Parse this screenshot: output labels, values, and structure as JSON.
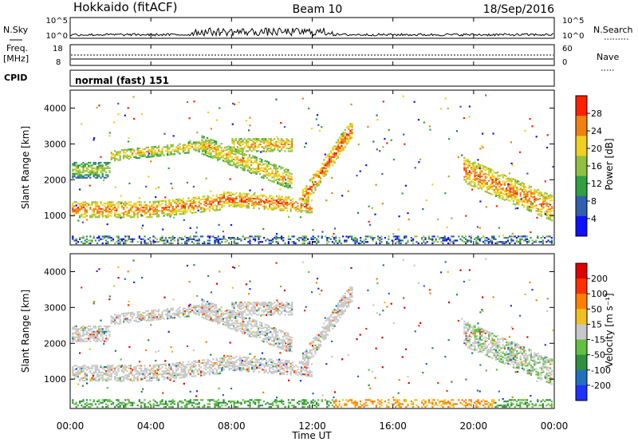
{
  "header": {
    "station": "Hokkaido (fitACF)",
    "beam": "Beam 10",
    "date": "18/Sep/2016"
  },
  "nsky_panel": {
    "left_label": "N.Sky",
    "right_label": "N.Search",
    "left_ticks": [
      "10^5",
      "10^0"
    ],
    "right_ticks": [
      "10^5",
      "10^0"
    ]
  },
  "freq_panel": {
    "left_label_1": "Freq.",
    "left_label_2": "[MHz]",
    "right_label": "Nave",
    "left_ticks": [
      "18",
      "8"
    ],
    "right_ticks": [
      "60",
      "0"
    ]
  },
  "cpid_panel": {
    "label": "CPID",
    "text": "normal (fast) 151"
  },
  "axes": {
    "ylabel": "Slant Range [km]",
    "xlabel": "Time UT",
    "xticks": [
      "00:00",
      "04:00",
      "08:00",
      "12:00",
      "16:00",
      "20:00",
      "00:00"
    ],
    "yticks": [
      "1000",
      "2000",
      "3000",
      "4000"
    ]
  },
  "colorbars": {
    "power": {
      "label": "Power [dB]",
      "ticks": [
        "28",
        "24",
        "20",
        "16",
        "12",
        "8",
        "4"
      ],
      "colors": [
        "#1010ff",
        "#3060b0",
        "#30a040",
        "#90c040",
        "#f0d020",
        "#f08010",
        "#ff2000"
      ]
    },
    "velocity": {
      "label": "Velocity [m s⁻¹]",
      "ticks": [
        "200",
        "100",
        "50",
        "15",
        "-15",
        "-50",
        "-100",
        "-200"
      ],
      "colors": [
        "#2030ff",
        "#2070c0",
        "#309040",
        "#60c040",
        "#c8c8c8",
        "#f0c020",
        "#ff8000",
        "#ff3000",
        "#e00000"
      ]
    }
  },
  "chart_data": [
    {
      "type": "heatmap",
      "title": "Power [dB]",
      "ylabel": "Slant Range [km]",
      "xlabel": "Time UT",
      "xlim": [
        0,
        24
      ],
      "ylim": [
        180,
        4500
      ],
      "clim": [
        0,
        31
      ],
      "x_unit": "hours UT",
      "colorbar_ticks": [
        4,
        8,
        12,
        16,
        20,
        24,
        28
      ]
    },
    {
      "type": "heatmap",
      "title": "Velocity [m s⁻¹]",
      "ylabel": "Slant Range [km]",
      "xlabel": "Time UT",
      "xlim": [
        0,
        24
      ],
      "ylim": [
        180,
        4500
      ],
      "clim": [
        -250,
        250
      ],
      "x_unit": "hours UT",
      "colorbar_ticks": [
        -200,
        -100,
        -50,
        -15,
        15,
        50,
        100,
        200
      ]
    }
  ]
}
